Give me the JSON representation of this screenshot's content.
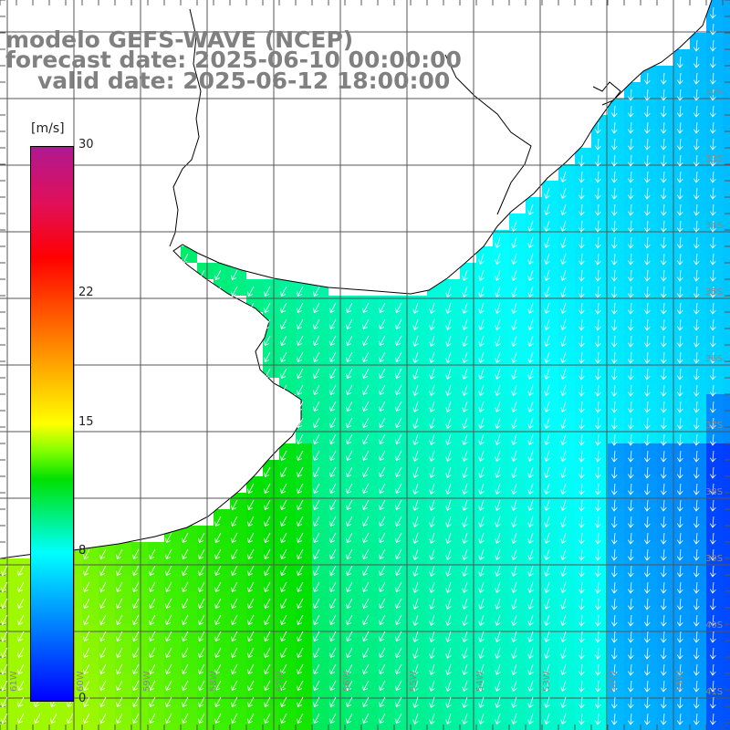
{
  "title": {
    "line1": "modelo GEFS-WAVE (NCEP)",
    "line2": "forecast date: 2025-06-10 00:00:00",
    "line3": "valid date: 2025-06-12 18:00:00"
  },
  "colorbar": {
    "unit": "[m/s]",
    "ticks": [
      {
        "value": 30,
        "label": "30"
      },
      {
        "value": 22,
        "label": "22"
      },
      {
        "value": 15,
        "label": "15"
      },
      {
        "value": 8,
        "label": "8"
      },
      {
        "value": 0,
        "label": "0"
      }
    ],
    "min": 0,
    "max": 30
  },
  "map": {
    "lon_range": [
      -62,
      -51
    ],
    "lat_range": [
      -41.7,
      -31.3
    ],
    "lat_labels": [
      "32S",
      "33S",
      "34S",
      "35S",
      "36S",
      "37S",
      "38S",
      "39S",
      "40S",
      "41S"
    ],
    "lon_labels": [
      "61W",
      "60W",
      "59W",
      "58W",
      "57W",
      "56W",
      "55W",
      "54W",
      "53W",
      "52W",
      "51W"
    ],
    "colors": {
      "land": "#ffffff",
      "coast": "#000000",
      "grid": "#555555",
      "arrow": "#ffffff"
    }
  }
}
